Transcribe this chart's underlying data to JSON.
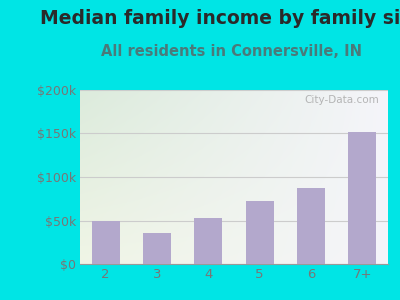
{
  "title": "Median family income by family size",
  "subtitle": "All residents in Connersville, IN",
  "categories": [
    "2",
    "3",
    "4",
    "5",
    "6",
    "7+"
  ],
  "values": [
    50000,
    36000,
    53000,
    72000,
    87000,
    152000
  ],
  "bar_color": "#b3a8cc",
  "title_fontsize": 13.5,
  "subtitle_fontsize": 10.5,
  "title_color": "#2a2a2a",
  "subtitle_color": "#4a7a7a",
  "tick_color": "#777777",
  "ylim": [
    0,
    200000
  ],
  "yticks": [
    0,
    50000,
    100000,
    150000,
    200000
  ],
  "ytick_labels": [
    "$0",
    "$50k",
    "$100k",
    "$150k",
    "$200k"
  ],
  "bg_outer_color": "#00e5e5",
  "bg_plot_color_topleft": "#ddeedd",
  "bg_plot_color_topright": "#eeeeff",
  "bg_plot_color_bottom": "#f0f5e8",
  "grid_color": "#cccccc",
  "watermark": "City-Data.com"
}
